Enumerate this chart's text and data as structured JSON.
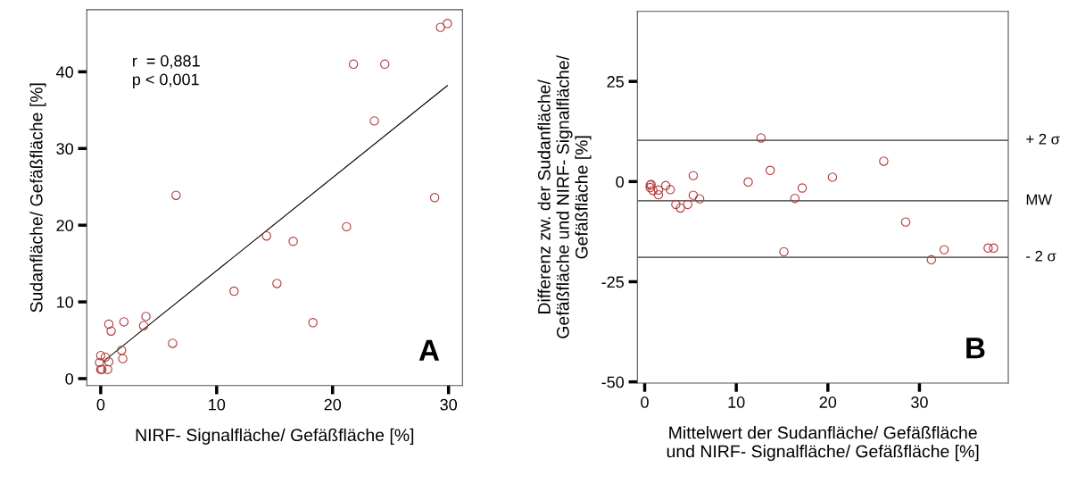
{
  "chart_data": [
    {
      "type": "scatter",
      "xlabel": "NIRF- Signalfläche/ Gefäßfläche [%]",
      "ylabel": "Sudanfläche/ Gefäßfläche [%]",
      "xlim": [
        -1.2,
        31.2
      ],
      "ylim": [
        -0.9,
        48.1
      ],
      "xticks": [
        0,
        10,
        20,
        30
      ],
      "yticks": [
        0,
        10,
        20,
        30,
        40
      ],
      "grid": false,
      "annotations": [
        "r  = 0,881\np < 0,001",
        "A"
      ],
      "series": [
        {
          "marker": "circle",
          "color": "#b33a3a",
          "x": [
            29.9,
            29.3,
            21.8,
            24.5,
            23.6,
            6.5,
            28.8,
            21.2,
            14.3,
            16.6,
            15.2,
            11.5,
            18.3,
            6.2,
            3.9,
            3.7,
            2.0,
            0.7,
            0.9,
            1.8,
            1.9,
            0.0,
            0.4,
            0.7,
            -0.1,
            0.0,
            0.1,
            0.6
          ],
          "values": [
            46.3,
            45.8,
            41.0,
            41.0,
            33.6,
            23.9,
            23.6,
            19.8,
            18.6,
            17.9,
            12.4,
            11.4,
            7.3,
            4.6,
            8.1,
            6.9,
            7.4,
            7.1,
            6.2,
            3.7,
            2.6,
            3.0,
            2.8,
            2.2,
            2.1,
            1.2,
            1.2,
            1.2
          ]
        },
        {
          "type": "line",
          "color": "#000000",
          "x": [
            0.2,
            29.9
          ],
          "values": [
            2.2,
            38.2
          ]
        }
      ]
    },
    {
      "type": "scatter",
      "xlabel": "Mittelwert der Sudanfläche/ Gefäßfläche\nund NIRF- Signalfläche/ Gefäßfläche [%]",
      "ylabel": "Differenz zw. der Sudanfläche/\nGefäßfläche und NIRF- Signalfläche/\nGefäßfläche [%]",
      "xlim": [
        -0.8,
        39.7
      ],
      "ylim": [
        -50.3,
        42.5
      ],
      "xticks": [
        0,
        10,
        20,
        30
      ],
      "yticks": [
        -50,
        -25,
        0,
        25
      ],
      "grid": false,
      "annotations": [
        "B"
      ],
      "ref_lines": [
        {
          "axis": "y",
          "value": 10.3,
          "label": "+ 2 σ"
        },
        {
          "axis": "y",
          "value": -4.8,
          "label": "MW"
        },
        {
          "axis": "y",
          "value": -18.9,
          "label": "- 2 σ"
        }
      ],
      "series": [
        {
          "marker": "circle",
          "color": "#b33a3a",
          "x": [
            12.7,
            26.1,
            13.7,
            5.3,
            20.5,
            11.3,
            17.2,
            16.4,
            28.5,
            15.2,
            31.3,
            32.7,
            37.5,
            38.1,
            0.6,
            0.7,
            0.6,
            0.9,
            1.5,
            1.5,
            2.3,
            2.8,
            3.4,
            3.9,
            4.7,
            5.3,
            6.0
          ],
          "values": [
            10.9,
            5.1,
            2.8,
            1.5,
            1.1,
            -0.1,
            -1.6,
            -4.2,
            -10.1,
            -17.5,
            -19.5,
            -17.0,
            -16.6,
            -16.6,
            -0.9,
            -0.7,
            -1.5,
            -2.2,
            -2.1,
            -3.3,
            -1.0,
            -2.0,
            -5.7,
            -6.6,
            -5.7,
            -3.4,
            -4.3
          ]
        }
      ]
    }
  ]
}
